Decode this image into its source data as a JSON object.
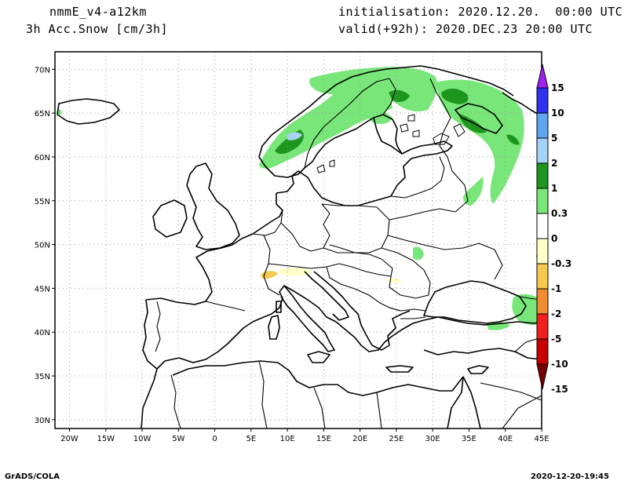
{
  "header": {
    "model": "nmmE_v4-a12km",
    "field": "3h Acc.Snow [cm/3h]",
    "init": "initialisation: 2020.12.20.  00:00 UTC",
    "valid": "valid(+92h): 2020.DEC.23 20:00 UTC"
  },
  "footer": {
    "left": "GrADS/COLA",
    "right": "2020-12-20-19:45"
  },
  "map": {
    "lon_range": [
      -22,
      45
    ],
    "lat_range": [
      29,
      72
    ],
    "lon_ticks": [
      {
        "v": -20,
        "label": "20W"
      },
      {
        "v": -15,
        "label": "15W"
      },
      {
        "v": -10,
        "label": "10W"
      },
      {
        "v": -5,
        "label": "5W"
      },
      {
        "v": 0,
        "label": "0"
      },
      {
        "v": 5,
        "label": "5E"
      },
      {
        "v": 10,
        "label": "10E"
      },
      {
        "v": 15,
        "label": "15E"
      },
      {
        "v": 20,
        "label": "20E"
      },
      {
        "v": 25,
        "label": "25E"
      },
      {
        "v": 30,
        "label": "30E"
      },
      {
        "v": 35,
        "label": "35E"
      },
      {
        "v": 40,
        "label": "40E"
      },
      {
        "v": 45,
        "label": "45E"
      }
    ],
    "lat_ticks": [
      {
        "v": 30,
        "label": "30N"
      },
      {
        "v": 35,
        "label": "35N"
      },
      {
        "v": 40,
        "label": "40N"
      },
      {
        "v": 45,
        "label": "45N"
      },
      {
        "v": 50,
        "label": "50N"
      },
      {
        "v": 55,
        "label": "55N"
      },
      {
        "v": 60,
        "label": "60N"
      },
      {
        "v": 65,
        "label": "65N"
      },
      {
        "v": 70,
        "label": "70N"
      }
    ],
    "grid": "dotted"
  },
  "colorbar": {
    "levels": [
      "15",
      "10",
      "5",
      "2",
      "1",
      "0.3",
      "0",
      "-0.3",
      "-1",
      "-2",
      "-5",
      "-10",
      "-15"
    ],
    "colors": [
      "#a020f0",
      "#3030f0",
      "#5fa5f0",
      "#a5d2f5",
      "#1e961e",
      "#78e678",
      "#ffffff",
      "#ffffc8",
      "#f5c850",
      "#f08c32",
      "#f02020",
      "#c80000",
      "#780000"
    ]
  },
  "colors": {
    "snow_light": "#78e678",
    "snow_dark": "#1e961e",
    "snow_blue": "#a5d2f5",
    "melt_light": "#ffffc8",
    "melt_orange": "#f5c850"
  }
}
